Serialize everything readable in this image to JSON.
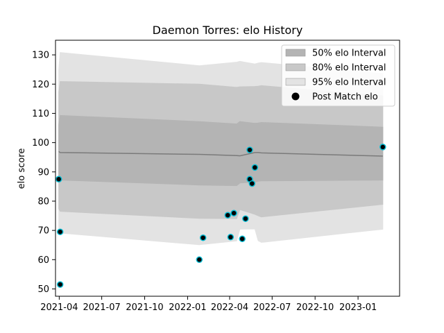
{
  "chart_data": {
    "type": "area",
    "title": "Daemon Torres: elo History",
    "xlabel": "",
    "ylabel": "elo score",
    "x_ticks": [
      "2021-04",
      "2021-07",
      "2021-10",
      "2022-01",
      "2022-04",
      "2022-07",
      "2022-10",
      "2023-01"
    ],
    "x_range": [
      "2021-03-24",
      "2023-03-31"
    ],
    "y_ticks": [
      50,
      60,
      70,
      80,
      90,
      100,
      110,
      120,
      130
    ],
    "ylim": [
      47.5,
      135
    ],
    "grid": false,
    "legend_position": "top-right",
    "colors": {
      "band_50": "#b4b4b4",
      "band_80": "#c8c8c8",
      "band_95": "#e3e3e3",
      "mean_line": "#7a7a7a",
      "dot_fill": "#000000",
      "dot_edge": "#00bcd4"
    },
    "legend": [
      {
        "label": "50% elo Interval",
        "kind": "band_50"
      },
      {
        "label": "80% elo Interval",
        "kind": "band_80"
      },
      {
        "label": "95% elo Interval",
        "kind": "band_95"
      },
      {
        "label": "Post Match elo",
        "kind": "dot"
      }
    ],
    "x": [
      "2021-03-31",
      "2021-04-03",
      "2022-01-26",
      "2022-04-16",
      "2022-04-23",
      "2022-05-25",
      "2022-06-01",
      "2022-06-08",
      "2023-02-23"
    ],
    "mean": [
      97,
      96.6,
      96,
      95.6,
      95.5,
      96.6,
      96.6,
      96.5,
      95.4
    ],
    "bands": {
      "p50": {
        "low": [
          87.5,
          87.2,
          85.5,
          85.3,
          86.2,
          86.5,
          86.8,
          86.9,
          87.2
        ],
        "high": [
          106.2,
          109.3,
          107.2,
          106.4,
          107.2,
          106.6,
          106.7,
          106.9,
          105.3
        ]
      },
      "p80": {
        "low": [
          77.4,
          76.5,
          74.1,
          74.0,
          77.1,
          75.5,
          75.0,
          74.6,
          78.9
        ],
        "high": [
          117.3,
          120.9,
          120.0,
          118.9,
          119.1,
          119.2,
          119.3,
          119.5,
          116.0
        ]
      },
      "p95": {
        "low": [
          70.1,
          69.1,
          65.1,
          66.4,
          70.4,
          70.5,
          66.5,
          65.9,
          70.4
        ],
        "high": [
          124.9,
          130.8,
          126.3,
          127.5,
          127.8,
          126.9,
          127.2,
          127.4,
          123.6
        ]
      }
    },
    "post_match": [
      {
        "x": "2021-03-31",
        "y": 87.5
      },
      {
        "x": "2021-04-03",
        "y": 69.5
      },
      {
        "x": "2021-04-03",
        "y": 51.5
      },
      {
        "x": "2022-01-26",
        "y": 60.0
      },
      {
        "x": "2022-02-03",
        "y": 67.5
      },
      {
        "x": "2022-03-28",
        "y": 75.2
      },
      {
        "x": "2022-04-03",
        "y": 67.7
      },
      {
        "x": "2022-04-10",
        "y": 75.9
      },
      {
        "x": "2022-04-28",
        "y": 67.1
      },
      {
        "x": "2022-05-05",
        "y": 74.0
      },
      {
        "x": "2022-05-14",
        "y": 97.5
      },
      {
        "x": "2022-05-14",
        "y": 87.5
      },
      {
        "x": "2022-05-19",
        "y": 86.0
      },
      {
        "x": "2022-05-25",
        "y": 91.5
      },
      {
        "x": "2023-02-23",
        "y": 98.5
      }
    ]
  }
}
